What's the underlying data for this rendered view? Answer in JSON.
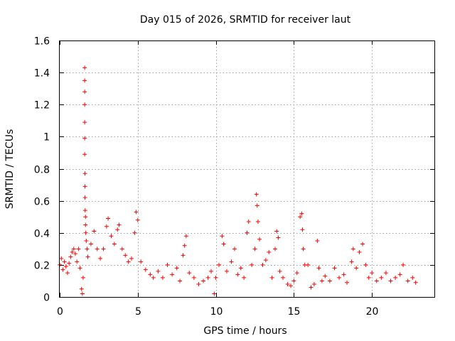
{
  "chart_data": {
    "type": "scatter",
    "title": "Day 015 of 2026, SRMTID for receiver laut",
    "xlabel": "GPS time / hours",
    "ylabel": "SRMTID / TECUs",
    "xlim": [
      0,
      24
    ],
    "ylim": [
      0,
      1.6
    ],
    "x_ticks": [
      0,
      5,
      10,
      15,
      20
    ],
    "x_tick_labels": [
      "0",
      "5",
      "10",
      "15",
      "20"
    ],
    "y_ticks": [
      0,
      0.2,
      0.4,
      0.6,
      0.8,
      1.0,
      1.2,
      1.4,
      1.6
    ],
    "y_tick_labels": [
      "0",
      "0.2",
      "0.4",
      "0.6",
      "0.8",
      "1",
      "1.2",
      "1.4",
      "1.6"
    ],
    "grid": true,
    "marker": "plus",
    "color": "#ff0000",
    "series": [
      {
        "name": "SRMTID",
        "points": [
          [
            0.0,
            0.2
          ],
          [
            0.1,
            0.24
          ],
          [
            0.2,
            0.17
          ],
          [
            0.3,
            0.22
          ],
          [
            0.4,
            0.19
          ],
          [
            0.5,
            0.15
          ],
          [
            0.6,
            0.21
          ],
          [
            0.7,
            0.25
          ],
          [
            0.8,
            0.28
          ],
          [
            0.9,
            0.3
          ],
          [
            1.0,
            0.27
          ],
          [
            1.1,
            0.22
          ],
          [
            1.2,
            0.3
          ],
          [
            1.3,
            0.18
          ],
          [
            1.4,
            0.05
          ],
          [
            1.45,
            0.02
          ],
          [
            1.5,
            0.12
          ],
          [
            1.6,
            1.43
          ],
          [
            1.6,
            1.35
          ],
          [
            1.6,
            1.28
          ],
          [
            1.6,
            1.2
          ],
          [
            1.6,
            1.09
          ],
          [
            1.6,
            0.99
          ],
          [
            1.6,
            0.89
          ],
          [
            1.62,
            0.77
          ],
          [
            1.62,
            0.69
          ],
          [
            1.62,
            0.62
          ],
          [
            1.63,
            0.54
          ],
          [
            1.65,
            0.5
          ],
          [
            1.65,
            0.45
          ],
          [
            1.67,
            0.4
          ],
          [
            1.7,
            0.35
          ],
          [
            1.75,
            0.3
          ],
          [
            1.8,
            0.25
          ],
          [
            2.0,
            0.33
          ],
          [
            2.2,
            0.41
          ],
          [
            2.4,
            0.3
          ],
          [
            2.6,
            0.24
          ],
          [
            2.8,
            0.3
          ],
          [
            3.0,
            0.44
          ],
          [
            3.1,
            0.49
          ],
          [
            3.3,
            0.38
          ],
          [
            3.5,
            0.33
          ],
          [
            3.7,
            0.42
          ],
          [
            3.8,
            0.45
          ],
          [
            4.0,
            0.3
          ],
          [
            4.2,
            0.26
          ],
          [
            4.4,
            0.22
          ],
          [
            4.6,
            0.24
          ],
          [
            4.8,
            0.4
          ],
          [
            4.9,
            0.53
          ],
          [
            5.0,
            0.48
          ],
          [
            5.2,
            0.22
          ],
          [
            5.5,
            0.17
          ],
          [
            5.8,
            0.14
          ],
          [
            6.0,
            0.12
          ],
          [
            6.3,
            0.16
          ],
          [
            6.6,
            0.12
          ],
          [
            6.9,
            0.2
          ],
          [
            7.2,
            0.14
          ],
          [
            7.5,
            0.18
          ],
          [
            7.7,
            0.1
          ],
          [
            7.9,
            0.26
          ],
          [
            8.0,
            0.32
          ],
          [
            8.1,
            0.38
          ],
          [
            8.3,
            0.15
          ],
          [
            8.6,
            0.12
          ],
          [
            8.9,
            0.08
          ],
          [
            9.2,
            0.1
          ],
          [
            9.5,
            0.12
          ],
          [
            9.7,
            0.16
          ],
          [
            9.9,
            0.02
          ],
          [
            10.0,
            0.12
          ],
          [
            10.2,
            0.2
          ],
          [
            10.4,
            0.38
          ],
          [
            10.5,
            0.33
          ],
          [
            10.7,
            0.16
          ],
          [
            11.0,
            0.22
          ],
          [
            11.2,
            0.3
          ],
          [
            11.4,
            0.14
          ],
          [
            11.6,
            0.18
          ],
          [
            11.8,
            0.12
          ],
          [
            12.0,
            0.4
          ],
          [
            12.1,
            0.47
          ],
          [
            12.3,
            0.2
          ],
          [
            12.5,
            0.3
          ],
          [
            12.6,
            0.64
          ],
          [
            12.65,
            0.57
          ],
          [
            12.7,
            0.47
          ],
          [
            12.8,
            0.36
          ],
          [
            13.0,
            0.2
          ],
          [
            13.2,
            0.23
          ],
          [
            13.4,
            0.28
          ],
          [
            13.6,
            0.12
          ],
          [
            13.8,
            0.3
          ],
          [
            13.9,
            0.41
          ],
          [
            14.0,
            0.37
          ],
          [
            14.1,
            0.16
          ],
          [
            14.3,
            0.12
          ],
          [
            14.6,
            0.08
          ],
          [
            14.8,
            0.07
          ],
          [
            15.0,
            0.1
          ],
          [
            15.2,
            0.15
          ],
          [
            15.4,
            0.5
          ],
          [
            15.5,
            0.52
          ],
          [
            15.55,
            0.42
          ],
          [
            15.6,
            0.3
          ],
          [
            15.7,
            0.2
          ],
          [
            15.9,
            0.2
          ],
          [
            16.1,
            0.06
          ],
          [
            16.3,
            0.08
          ],
          [
            16.5,
            0.35
          ],
          [
            16.6,
            0.18
          ],
          [
            16.8,
            0.1
          ],
          [
            17.0,
            0.13
          ],
          [
            17.3,
            0.1
          ],
          [
            17.6,
            0.18
          ],
          [
            17.9,
            0.12
          ],
          [
            18.2,
            0.14
          ],
          [
            18.4,
            0.09
          ],
          [
            18.7,
            0.22
          ],
          [
            18.8,
            0.3
          ],
          [
            19.0,
            0.18
          ],
          [
            19.2,
            0.28
          ],
          [
            19.4,
            0.33
          ],
          [
            19.6,
            0.2
          ],
          [
            19.8,
            0.12
          ],
          [
            20.0,
            0.15
          ],
          [
            20.3,
            0.1
          ],
          [
            20.6,
            0.12
          ],
          [
            20.9,
            0.15
          ],
          [
            21.2,
            0.1
          ],
          [
            21.5,
            0.12
          ],
          [
            21.8,
            0.14
          ],
          [
            22.0,
            0.2
          ],
          [
            22.3,
            0.1
          ],
          [
            22.6,
            0.12
          ],
          [
            22.8,
            0.09
          ]
        ]
      }
    ]
  }
}
